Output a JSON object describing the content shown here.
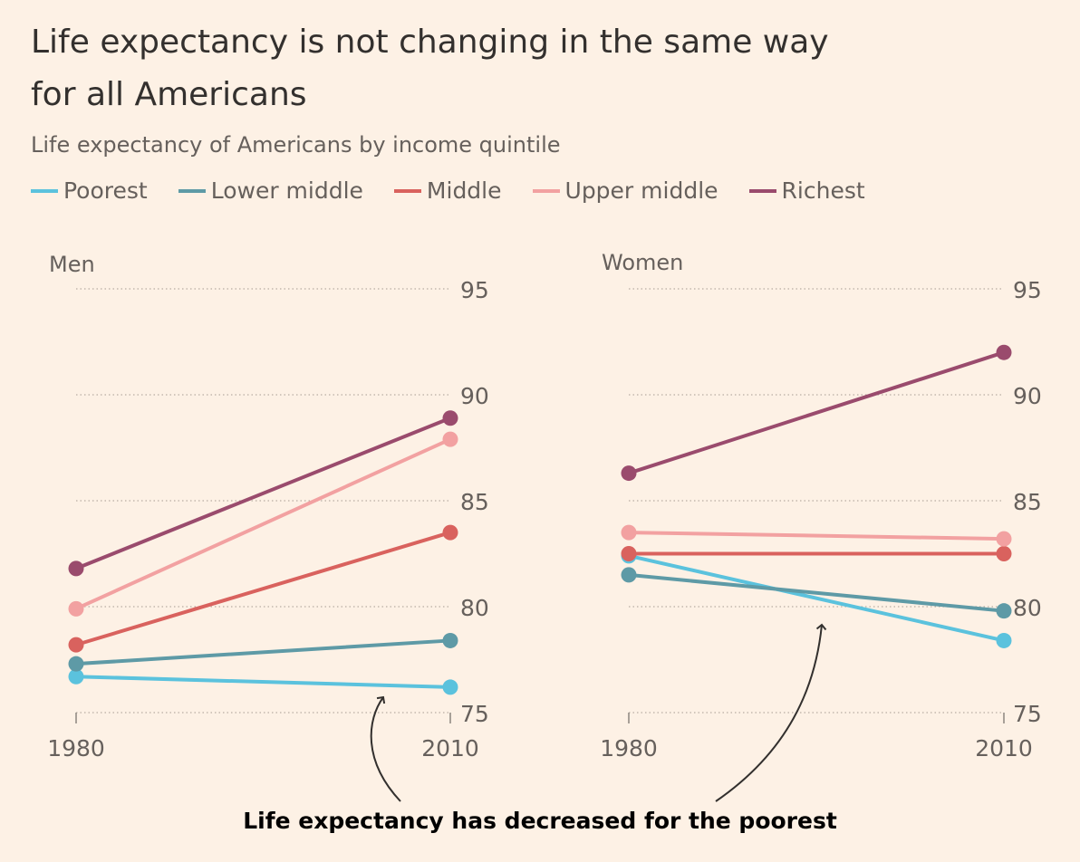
{
  "title": "Life expectancy is not changing in the same way for all Americans",
  "subtitle": "Life expectancy of Americans by income quintile",
  "annotation": "Life expectancy has decreased for the poorest",
  "legend": [
    {
      "name": "Poorest",
      "color": "#5bc2dd"
    },
    {
      "name": "Lower middle",
      "color": "#5e9aa6"
    },
    {
      "name": "Middle",
      "color": "#d9625e"
    },
    {
      "name": "Upper middle",
      "color": "#f2a1a1"
    },
    {
      "name": "Richest",
      "color": "#9a4b6d"
    }
  ],
  "chart_data": [
    {
      "type": "line",
      "panel_label": "Men",
      "x": [
        "1980",
        "2010"
      ],
      "ylim": [
        75,
        95
      ],
      "yticks": [
        75,
        80,
        85,
        90,
        95
      ],
      "grid": true,
      "series": [
        {
          "name": "Poorest",
          "values": [
            76.7,
            76.2
          ]
        },
        {
          "name": "Lower middle",
          "values": [
            77.3,
            78.4
          ]
        },
        {
          "name": "Middle",
          "values": [
            78.2,
            83.5
          ]
        },
        {
          "name": "Upper middle",
          "values": [
            79.9,
            87.9
          ]
        },
        {
          "name": "Richest",
          "values": [
            81.8,
            88.9
          ]
        }
      ]
    },
    {
      "type": "line",
      "panel_label": "Women",
      "x": [
        "1980",
        "2010"
      ],
      "ylim": [
        75,
        95
      ],
      "yticks": [
        75,
        80,
        85,
        90,
        95
      ],
      "grid": true,
      "series": [
        {
          "name": "Poorest",
          "values": [
            82.4,
            78.4
          ]
        },
        {
          "name": "Lower middle",
          "values": [
            81.5,
            79.8
          ]
        },
        {
          "name": "Middle",
          "values": [
            82.5,
            82.5
          ]
        },
        {
          "name": "Upper middle",
          "values": [
            83.5,
            83.2
          ]
        },
        {
          "name": "Richest",
          "values": [
            86.3,
            92.0
          ]
        }
      ]
    }
  ]
}
